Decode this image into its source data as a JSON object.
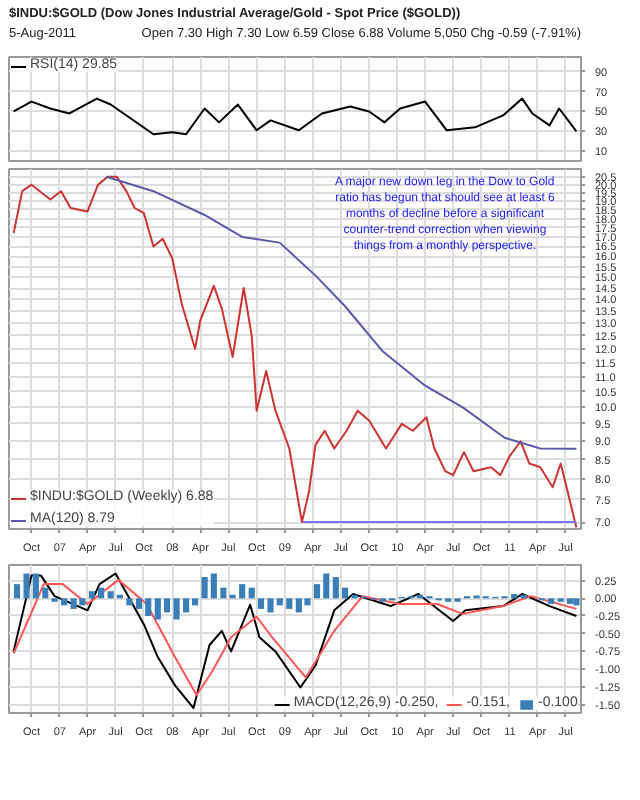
{
  "chart_data": [
    {
      "type": "line",
      "title": "$INDU:$GOLD (Dow Jones Industrial Average/Gold - Spot Price ($GOLD))",
      "subtitle": "5-Aug-2011",
      "annotations": [
        "Open 7.30 High 7.30 Low 6.59 Close 6.88 Volume 5,050 Chg -0.59 (-7.91%)"
      ],
      "x": [
        "2006-08-04",
        "2006-10-01",
        "2006-12-01",
        "2007-02-01",
        "2007-05-01",
        "2007-06-15",
        "2007-11-01",
        "2008-01-01",
        "2008-02-15",
        "2008-04-15",
        "2008-06-01",
        "2008-08-01",
        "2008-10-01",
        "2008-11-15",
        "2009-02-15",
        "2009-05-01",
        "2009-08-01",
        "2009-10-01",
        "2009-11-20",
        "2010-01-10",
        "2010-04-01",
        "2010-06-10",
        "2010-09-10",
        "2010-12-10",
        "2011-02-10",
        "2011-03-15",
        "2011-05-10",
        "2011-06-10",
        "2011-08-05"
      ],
      "series": [
        {
          "name": "RSI(14) 29.85",
          "color": "#000000",
          "values": [
            50,
            60,
            53,
            48,
            63,
            57,
            27,
            29,
            27,
            53,
            39,
            57,
            31,
            41,
            31,
            48,
            55,
            50,
            39,
            53,
            60,
            31,
            34,
            46,
            63,
            48,
            36,
            53,
            30
          ]
        }
      ],
      "xlim": [
        "2006-07-20",
        "2011-08-20"
      ],
      "xticks": [
        {
          "value": "2006-10-01",
          "label": null
        },
        {
          "value": "2007-01-01",
          "label": null
        },
        {
          "value": "2007-04-01",
          "label": null
        },
        {
          "value": "2007-07-01",
          "label": null
        },
        {
          "value": "2007-10-01",
          "label": null
        },
        {
          "value": "2008-01-01",
          "label": null
        },
        {
          "value": "2008-04-01",
          "label": null
        },
        {
          "value": "2008-07-01",
          "label": null
        },
        {
          "value": "2008-10-01",
          "label": null
        },
        {
          "value": "2009-01-01",
          "label": null
        },
        {
          "value": "2009-04-01",
          "label": null
        },
        {
          "value": "2009-07-01",
          "label": null
        },
        {
          "value": "2009-10-01",
          "label": null
        },
        {
          "value": "2010-01-01",
          "label": null
        },
        {
          "value": "2010-04-01",
          "label": null
        },
        {
          "value": "2010-07-01",
          "label": null
        },
        {
          "value": "2010-10-01",
          "label": null
        },
        {
          "value": "2011-01-01",
          "label": null
        },
        {
          "value": "2011-04-01",
          "label": null
        },
        {
          "value": "2011-07-01",
          "label": null
        }
      ],
      "ylim": [
        0,
        105
      ],
      "yticks": [
        10,
        30,
        50,
        70,
        90
      ],
      "grid": true,
      "legend": "top left",
      "tick_labels": "y"
    },
    {
      "type": "line",
      "log": "y",
      "annotations": [
        "A major new down leg in the Dow to Gold\nratio has begun that should see at least 6\nmonths of decline before a significant\ncounter-trend correction when viewing\nthings from a monthly perspective."
      ],
      "series": [
        {
          "name": "$INDU:$GOLD (Weekly) 6.88",
          "color": "#cc3333",
          "x": [
            "2006-08-04",
            "2006-09-01",
            "2006-10-01",
            "2006-12-01",
            "2007-01-05",
            "2007-02-05",
            "2007-04-01",
            "2007-05-05",
            "2007-06-05",
            "2007-07-05",
            "2007-08-05",
            "2007-09-01",
            "2007-10-01",
            "2007-11-01",
            "2007-12-01",
            "2008-01-01",
            "2008-02-01",
            "2008-03-15",
            "2008-04-01",
            "2008-05-15",
            "2008-06-10",
            "2008-07-15",
            "2008-08-20",
            "2008-09-15",
            "2008-10-01",
            "2008-11-01",
            "2008-12-01",
            "2009-01-15",
            "2009-02-25",
            "2009-03-20",
            "2009-04-10",
            "2009-05-10",
            "2009-06-10",
            "2009-07-20",
            "2009-08-25",
            "2009-10-01",
            "2009-11-25",
            "2010-01-15",
            "2010-02-20",
            "2010-04-05",
            "2010-05-01",
            "2010-06-05",
            "2010-07-01",
            "2010-08-05",
            "2010-09-05",
            "2010-11-01",
            "2010-12-01",
            "2011-01-01",
            "2011-02-05",
            "2011-03-05",
            "2011-04-10",
            "2011-05-20",
            "2011-06-15",
            "2011-07-01",
            "2011-08-05"
          ],
          "values": [
            17.2,
            19.6,
            20.0,
            19.1,
            19.6,
            18.6,
            18.4,
            20.0,
            20.5,
            20.5,
            19.6,
            18.6,
            18.3,
            16.5,
            16.9,
            15.9,
            13.8,
            12.0,
            13.1,
            14.6,
            13.6,
            11.7,
            14.5,
            12.5,
            9.9,
            11.2,
            9.9,
            8.8,
            7.0,
            7.7,
            8.9,
            9.3,
            8.8,
            9.3,
            9.9,
            9.6,
            8.8,
            9.5,
            9.3,
            9.7,
            8.8,
            8.2,
            8.1,
            8.7,
            8.2,
            8.3,
            8.1,
            8.6,
            9.0,
            8.4,
            8.3,
            7.8,
            8.4,
            7.9,
            6.88
          ]
        },
        {
          "name": "MA(120) 8.79",
          "color": "#5a5aaa",
          "x": [
            "2007-06-01",
            "2007-11-01",
            "2008-04-15",
            "2008-08-15",
            "2008-12-15",
            "2009-04-15",
            "2009-07-15",
            "2009-11-15",
            "2010-04-01",
            "2010-08-01",
            "2010-12-15",
            "2011-04-10",
            "2011-08-05"
          ],
          "values": [
            20.5,
            19.6,
            18.2,
            17.0,
            16.7,
            15.0,
            13.7,
            11.9,
            10.7,
            10.0,
            9.1,
            8.8,
            8.79
          ]
        },
        {
          "color": "#7777ee",
          "x": [
            "2009-03-01",
            "2011-08-05"
          ],
          "values": [
            7.0,
            7.0
          ]
        }
      ],
      "xlim": [
        "2006-07-20",
        "2011-08-20"
      ],
      "xticks": [
        {
          "value": "2006-10-01",
          "label": "Oct"
        },
        {
          "value": "2007-01-01",
          "label": "07"
        },
        {
          "value": "2007-04-01",
          "label": "Apr"
        },
        {
          "value": "2007-07-01",
          "label": "Jul"
        },
        {
          "value": "2007-10-01",
          "label": "Oct"
        },
        {
          "value": "2008-01-01",
          "label": "08"
        },
        {
          "value": "2008-04-01",
          "label": "Apr"
        },
        {
          "value": "2008-07-01",
          "label": "Jul"
        },
        {
          "value": "2008-10-01",
          "label": "Oct"
        },
        {
          "value": "2009-01-01",
          "label": "09"
        },
        {
          "value": "2009-04-01",
          "label": "Apr"
        },
        {
          "value": "2009-07-01",
          "label": "Jul"
        },
        {
          "value": "2009-10-01",
          "label": "Oct"
        },
        {
          "value": "2010-01-01",
          "label": "10"
        },
        {
          "value": "2010-04-01",
          "label": "Apr"
        },
        {
          "value": "2010-07-01",
          "label": "Jul"
        },
        {
          "value": "2010-10-01",
          "label": "Oct"
        },
        {
          "value": "2011-01-01",
          "label": "11"
        },
        {
          "value": "2011-04-01",
          "label": "Apr"
        },
        {
          "value": "2011-07-01",
          "label": "Jul"
        }
      ],
      "ylim": [
        6.85,
        21.0
      ],
      "yticks": [
        {
          "value": 7,
          "label": "7.0"
        },
        {
          "value": 7.5,
          "label": "7.5"
        },
        {
          "value": 8,
          "label": "8.0"
        },
        {
          "value": 8.5,
          "label": "8.5"
        },
        {
          "value": 9,
          "label": "9.0"
        },
        {
          "value": 9.5,
          "label": "9.5"
        },
        {
          "value": 10,
          "label": "10.0"
        },
        {
          "value": 10.5,
          "label": "10.5"
        },
        {
          "value": 11,
          "label": "11.0"
        },
        {
          "value": 11.5,
          "label": "11.5"
        },
        {
          "value": 12,
          "label": "12.0"
        },
        {
          "value": 12.5,
          "label": "12.5"
        },
        {
          "value": 13,
          "label": "13.0"
        },
        {
          "value": 13.5,
          "label": "13.5"
        },
        {
          "value": 14,
          "label": "14.0"
        },
        {
          "value": 14.5,
          "label": "14.5"
        },
        {
          "value": 15,
          "label": "15.0"
        },
        {
          "value": 15.5,
          "label": "15.5"
        },
        {
          "value": 16,
          "label": "16.0"
        },
        {
          "value": 16.5,
          "label": "16.5"
        },
        {
          "value": 17,
          "label": "17.0"
        },
        {
          "value": 17.5,
          "label": "17.5"
        },
        {
          "value": 18,
          "label": "18.0"
        },
        {
          "value": 18.5,
          "label": "18.5"
        },
        {
          "value": 19,
          "label": "19.0"
        },
        {
          "value": 19.5,
          "label": "19.5"
        },
        {
          "value": 20,
          "label": "20.0"
        },
        {
          "value": 20.5,
          "label": "20.5"
        }
      ],
      "grid": true,
      "legend": "bottom left"
    },
    {
      "type": "line",
      "series": [
        {
          "name": "MACD(12,26,9) -0.250,",
          "color": "#000000",
          "x": [
            "2006-08-04",
            "2006-10-01",
            "2006-11-01",
            "2006-12-15",
            "2007-04-01",
            "2007-05-10",
            "2007-07-01",
            "2007-10-01",
            "2007-11-15",
            "2008-01-10",
            "2008-03-10",
            "2008-05-01",
            "2008-06-10",
            "2008-07-10",
            "2008-09-10",
            "2008-10-10",
            "2008-12-01",
            "2009-02-20",
            "2009-04-10",
            "2009-06-10",
            "2009-08-10",
            "2009-12-10",
            "2010-03-10",
            "2010-07-01",
            "2010-08-10",
            "2010-12-10",
            "2011-02-10",
            "2011-05-10",
            "2011-08-05"
          ],
          "values": [
            -0.75,
            0.32,
            0.32,
            0.03,
            -0.17,
            0.2,
            0.35,
            -0.37,
            -0.83,
            -1.23,
            -1.55,
            -0.66,
            -0.46,
            -0.75,
            -0.09,
            -0.55,
            -0.75,
            -1.26,
            -0.95,
            -0.17,
            0.06,
            -0.11,
            0.06,
            -0.32,
            -0.17,
            -0.11,
            0.06,
            -0.11,
            -0.25
          ]
        },
        {
          "name": "-0.151,",
          "color": "#ff5555",
          "x": [
            "2006-08-04",
            "2006-11-10",
            "2007-01-10",
            "2007-04-01",
            "2007-07-10",
            "2007-10-10",
            "2008-01-10",
            "2008-03-20",
            "2008-05-10",
            "2008-07-10",
            "2008-10-01",
            "2008-11-20",
            "2009-03-10",
            "2009-06-10",
            "2009-09-10",
            "2010-01-10",
            "2010-05-10",
            "2010-08-01",
            "2010-12-10",
            "2011-03-10",
            "2011-08-05"
          ],
          "values": [
            -0.78,
            0.2,
            0.2,
            -0.08,
            0.26,
            -0.08,
            -0.83,
            -1.37,
            -1.03,
            -0.55,
            -0.26,
            -0.55,
            -1.12,
            -0.46,
            0.03,
            -0.08,
            -0.08,
            -0.22,
            -0.11,
            0.03,
            -0.15
          ]
        },
        {
          "name": "-0.100",
          "type": "bar",
          "color": "#3a7fb8",
          "x": [
            "2006-08-15",
            "2006-09-15",
            "2006-10-15",
            "2006-11-15",
            "2006-12-15",
            "2007-01-15",
            "2007-02-15",
            "2007-03-15",
            "2007-04-15",
            "2007-05-15",
            "2007-06-15",
            "2007-07-15",
            "2007-08-15",
            "2007-09-15",
            "2007-10-15",
            "2007-11-15",
            "2007-12-15",
            "2008-01-15",
            "2008-02-15",
            "2008-03-15",
            "2008-04-15",
            "2008-05-15",
            "2008-06-15",
            "2008-07-15",
            "2008-08-15",
            "2008-09-15",
            "2008-10-15",
            "2008-11-15",
            "2008-12-15",
            "2009-01-15",
            "2009-02-15",
            "2009-03-15",
            "2009-04-15",
            "2009-05-15",
            "2009-06-15",
            "2009-07-15",
            "2009-08-15",
            "2009-09-15",
            "2009-10-15",
            "2009-11-15",
            "2009-12-15",
            "2010-01-15",
            "2010-02-15",
            "2010-03-15",
            "2010-04-15",
            "2010-05-15",
            "2010-06-15",
            "2010-07-15",
            "2010-08-15",
            "2010-09-15",
            "2010-10-15",
            "2010-11-15",
            "2010-12-15",
            "2011-01-15",
            "2011-02-15",
            "2011-03-15",
            "2011-04-15",
            "2011-05-15",
            "2011-06-15",
            "2011-07-15",
            "2011-08-05"
          ],
          "values": [
            0.2,
            0.35,
            0.35,
            0.15,
            -0.05,
            -0.1,
            -0.15,
            -0.1,
            0.1,
            0.15,
            0.1,
            0.05,
            -0.1,
            -0.15,
            -0.25,
            -0.3,
            -0.2,
            -0.3,
            -0.2,
            -0.1,
            0.3,
            0.35,
            0.15,
            0.05,
            0.2,
            0.15,
            -0.15,
            -0.2,
            -0.1,
            -0.15,
            -0.2,
            -0.1,
            0.2,
            0.35,
            0.3,
            0.15,
            0.05,
            0.02,
            -0.02,
            -0.05,
            -0.03,
            0.02,
            0.03,
            0.05,
            0.03,
            -0.03,
            -0.05,
            -0.05,
            0.03,
            0.04,
            0.03,
            0.02,
            0.03,
            0.06,
            0.05,
            0.0,
            -0.03,
            -0.08,
            -0.05,
            -0.08,
            -0.1
          ]
        }
      ],
      "xlim": [
        "2006-07-20",
        "2011-08-20"
      ],
      "xticks": [
        {
          "value": "2006-10-01",
          "label": "Oct"
        },
        {
          "value": "2007-01-01",
          "label": "07"
        },
        {
          "value": "2007-04-01",
          "label": "Apr"
        },
        {
          "value": "2007-07-01",
          "label": "Jul"
        },
        {
          "value": "2007-10-01",
          "label": "Oct"
        },
        {
          "value": "2008-01-01",
          "label": "08"
        },
        {
          "value": "2008-04-01",
          "label": "Apr"
        },
        {
          "value": "2008-07-01",
          "label": "Jul"
        },
        {
          "value": "2008-10-01",
          "label": "Oct"
        },
        {
          "value": "2009-01-01",
          "label": "09"
        },
        {
          "value": "2009-04-01",
          "label": "Apr"
        },
        {
          "value": "2009-07-01",
          "label": "Jul"
        },
        {
          "value": "2009-10-01",
          "label": "Oct"
        },
        {
          "value": "2010-01-01",
          "label": "10"
        },
        {
          "value": "2010-04-01",
          "label": "Apr"
        },
        {
          "value": "2010-07-01",
          "label": "Jul"
        },
        {
          "value": "2010-10-01",
          "label": "Oct"
        },
        {
          "value": "2011-01-01",
          "label": "11"
        },
        {
          "value": "2011-04-01",
          "label": "Apr"
        },
        {
          "value": "2011-07-01",
          "label": "Jul"
        }
      ],
      "ylim": [
        -1.62,
        0.47
      ],
      "yticks": [
        {
          "value": 0.25,
          "label": "0.25"
        },
        {
          "value": 0,
          "label": "0.00"
        },
        {
          "value": -0.25,
          "label": "-0.25"
        },
        {
          "value": -0.5,
          "label": "-0.50"
        },
        {
          "value": -0.75,
          "label": "-0.75"
        },
        {
          "value": -1,
          "label": "-1.00"
        },
        {
          "value": -1.25,
          "label": "-1.25"
        },
        {
          "value": -1.5,
          "label": "-1.50"
        }
      ],
      "grid": true,
      "legend": "bottom right"
    }
  ]
}
